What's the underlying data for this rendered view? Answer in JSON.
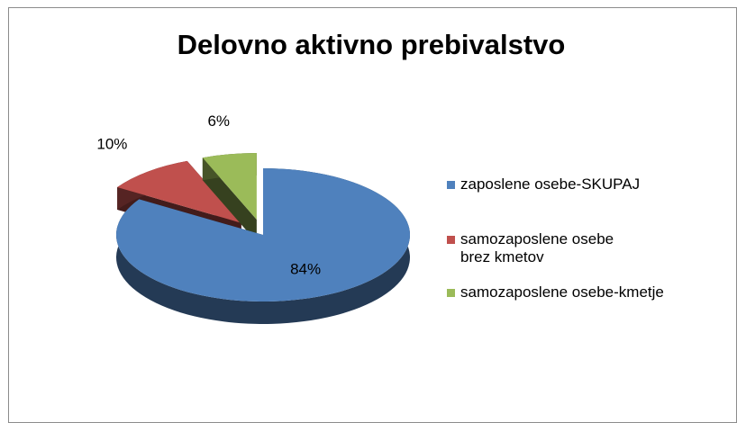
{
  "chart_data": {
    "type": "pie",
    "title": "Delovno aktivno prebivalstvo",
    "categories": [
      "zaposlene osebe-SKUPAJ",
      "samozaposlene osebe brez kmetov",
      "samozaposlene osebe-kmetje"
    ],
    "values": [
      84,
      10,
      6
    ],
    "value_labels": [
      "84%",
      "10%",
      "6%"
    ],
    "colors": [
      "#4f81bd",
      "#c0504d",
      "#9bbb59"
    ],
    "legend": "right"
  }
}
